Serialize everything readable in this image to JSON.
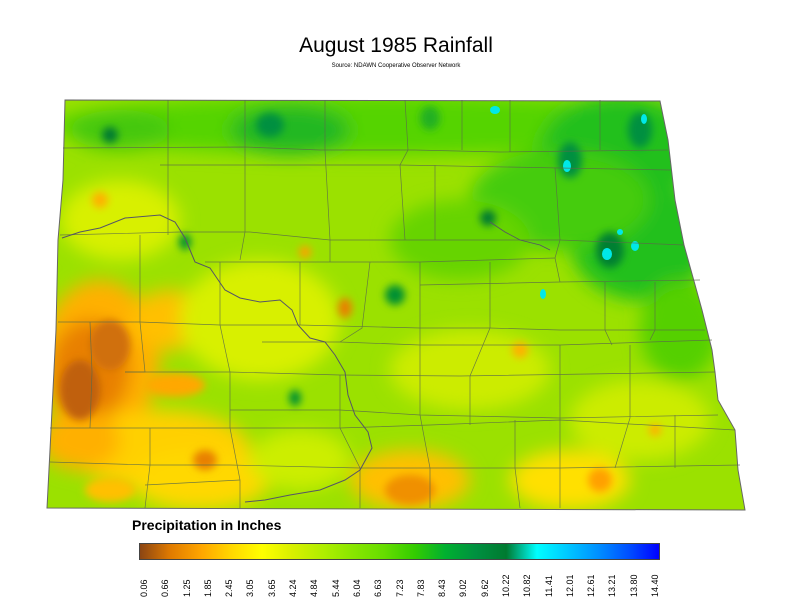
{
  "title": "August 1985 Rainfall",
  "subtitle": "Source: NDAWN Cooperative Observer Network",
  "legend": {
    "title": "Precipitation in Inches",
    "ticks": [
      "0.06",
      "0.66",
      "1.25",
      "1.85",
      "2.45",
      "3.05",
      "3.65",
      "4.24",
      "4.84",
      "5.44",
      "6.04",
      "6.63",
      "7.23",
      "7.83",
      "8.43",
      "9.02",
      "9.62",
      "10.22",
      "10.82",
      "11.41",
      "12.01",
      "12.61",
      "13.21",
      "13.80",
      "14.40"
    ],
    "colors": [
      "#8b4513",
      "#e07b00",
      "#ffa500",
      "#ffd700",
      "#ffff00",
      "#d8f000",
      "#b0ee00",
      "#88e600",
      "#66dd00",
      "#33cc00",
      "#00b030",
      "#009040",
      "#007a30",
      "#00ffff",
      "#00c8ff",
      "#0090ff",
      "#0050ff",
      "#0000ff"
    ]
  },
  "map": {
    "base_color": "#9be100",
    "region": "North Dakota counties"
  }
}
